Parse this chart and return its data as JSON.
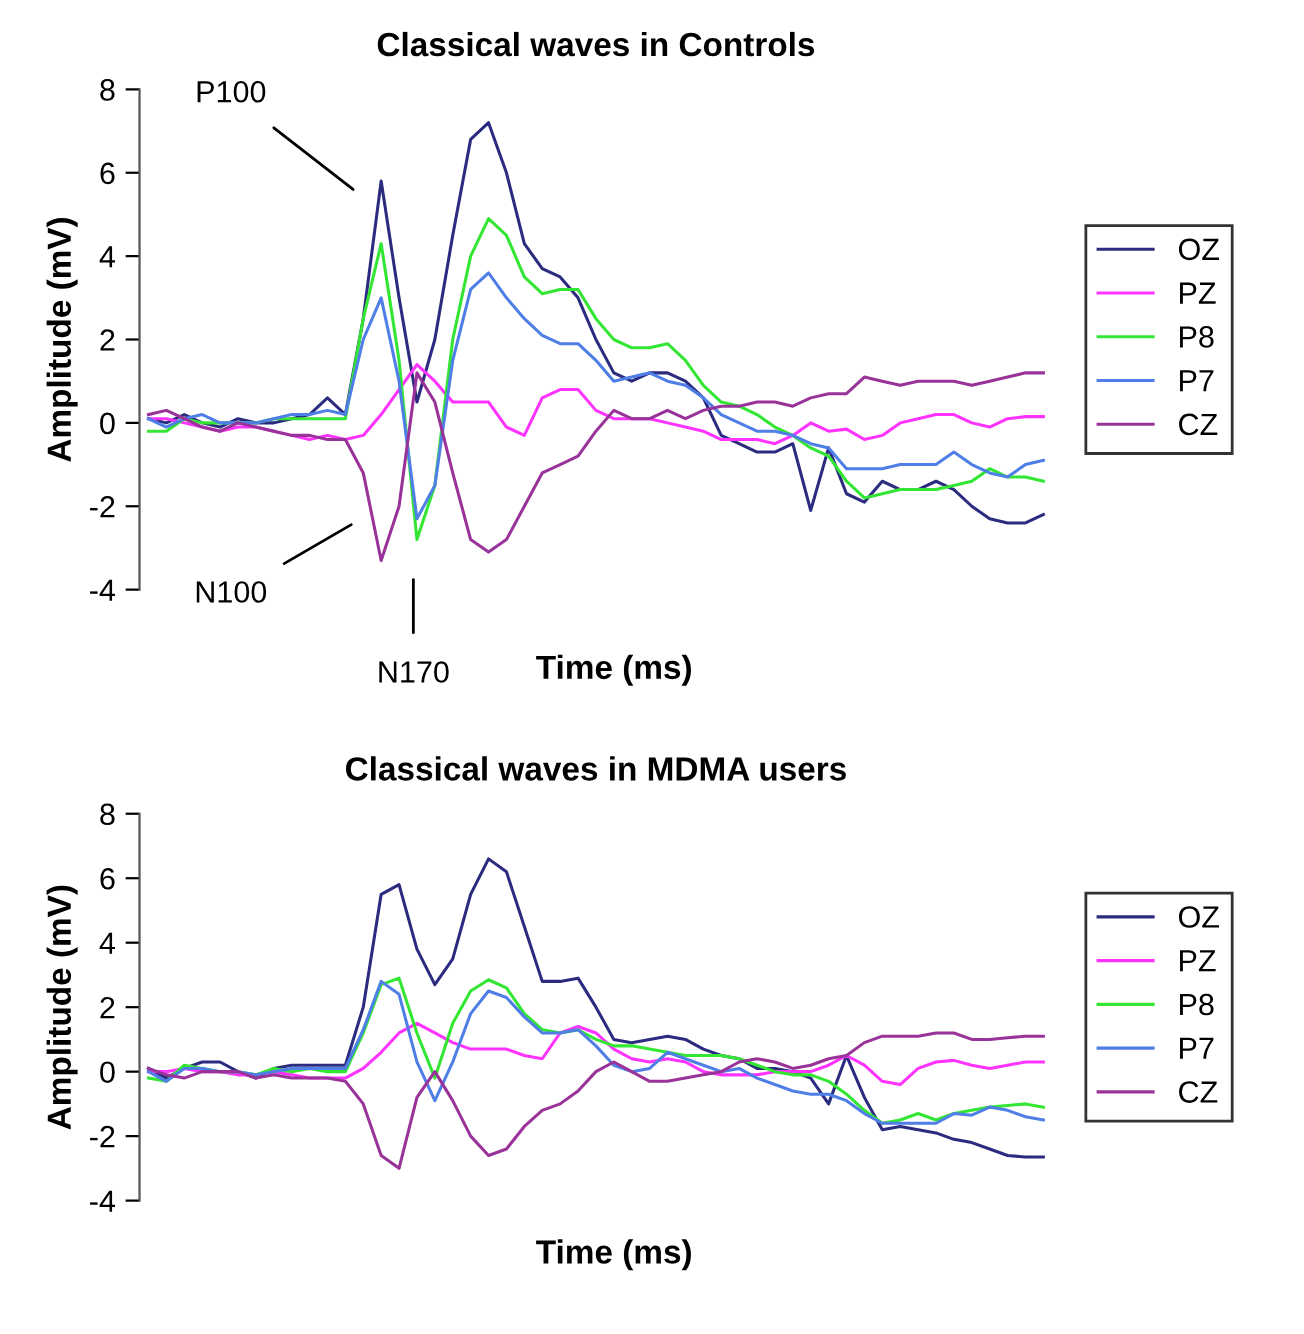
{
  "chart_data": [
    {
      "type": "line",
      "title": "Classical waves in Controls",
      "xlabel": "Time (ms)",
      "ylabel": "Amplitude (mV)",
      "categories": [
        null,
        null,
        null,
        null,
        null,
        null,
        null,
        null,
        null,
        null,
        null,
        null,
        null,
        null,
        null,
        null,
        null,
        null,
        null,
        null,
        null,
        null,
        null,
        null,
        null,
        null,
        null,
        null,
        null,
        null,
        null,
        null,
        null,
        null,
        null,
        null,
        null,
        null,
        null,
        null,
        null,
        null,
        null,
        null,
        null,
        null,
        null,
        null,
        null,
        null,
        null
      ],
      "series": [
        {
          "name": "OZ",
          "color": "#2b2b7f",
          "values": [
            0.1,
            0.0,
            0.2,
            0.0,
            -0.1,
            0.1,
            0.0,
            0.0,
            0.1,
            0.2,
            0.6,
            0.2,
            2.5,
            5.8,
            3.0,
            0.5,
            2.0,
            4.5,
            6.8,
            7.2,
            6.0,
            4.3,
            3.7,
            3.5,
            3.0,
            2.0,
            1.2,
            1.0,
            1.2,
            1.2,
            1.0,
            0.6,
            -0.3,
            -0.5,
            -0.7,
            -0.7,
            -0.5,
            -2.1,
            -0.6,
            -1.7,
            -1.9,
            -1.4,
            -1.6,
            -1.6,
            -1.4,
            -1.6,
            -2.0,
            -2.3,
            -2.4,
            -2.4,
            -2.2
          ]
        },
        {
          "name": "PZ",
          "color": "#ff33ff",
          "values": [
            0.1,
            0.1,
            0.0,
            -0.1,
            -0.2,
            -0.1,
            -0.1,
            -0.2,
            -0.3,
            -0.4,
            -0.3,
            -0.4,
            -0.3,
            0.2,
            0.8,
            1.4,
            1.0,
            0.5,
            0.5,
            0.5,
            -0.1,
            -0.3,
            0.6,
            0.8,
            0.8,
            0.3,
            0.1,
            0.1,
            0.1,
            0.0,
            -0.1,
            -0.2,
            -0.4,
            -0.4,
            -0.4,
            -0.5,
            -0.3,
            0.0,
            -0.2,
            -0.15,
            -0.4,
            -0.3,
            0.0,
            0.1,
            0.2,
            0.2,
            0.0,
            -0.1,
            0.1,
            0.15,
            0.15
          ]
        },
        {
          "name": "P8",
          "color": "#33e633",
          "values": [
            -0.2,
            -0.2,
            0.1,
            0.0,
            0.0,
            0.0,
            0.0,
            0.1,
            0.1,
            0.1,
            0.1,
            0.1,
            2.5,
            4.3,
            1.5,
            -2.8,
            -1.5,
            2.0,
            4.0,
            4.9,
            4.5,
            3.5,
            3.1,
            3.2,
            3.2,
            2.5,
            2.0,
            1.8,
            1.8,
            1.9,
            1.5,
            0.9,
            0.5,
            0.4,
            0.2,
            -0.1,
            -0.3,
            -0.6,
            -0.8,
            -1.4,
            -1.8,
            -1.7,
            -1.6,
            -1.6,
            -1.6,
            -1.5,
            -1.4,
            -1.1,
            -1.3,
            -1.3,
            -1.4
          ]
        },
        {
          "name": "P7",
          "color": "#4f7fe6",
          "values": [
            0.1,
            -0.1,
            0.1,
            0.2,
            0.0,
            0.0,
            0.0,
            0.1,
            0.2,
            0.2,
            0.3,
            0.2,
            2.0,
            3.0,
            1.0,
            -2.3,
            -1.5,
            1.5,
            3.2,
            3.6,
            3.0,
            2.5,
            2.1,
            1.9,
            1.9,
            1.5,
            1.0,
            1.1,
            1.2,
            1.0,
            0.9,
            0.6,
            0.2,
            0.0,
            -0.2,
            -0.2,
            -0.3,
            -0.5,
            -0.6,
            -1.1,
            -1.1,
            -1.1,
            -1.0,
            -1.0,
            -1.0,
            -0.7,
            -1.0,
            -1.2,
            -1.3,
            -1.0,
            -0.9
          ]
        },
        {
          "name": "CZ",
          "color": "#993399",
          "values": [
            0.2,
            0.3,
            0.1,
            -0.1,
            -0.2,
            0.0,
            -0.1,
            -0.2,
            -0.3,
            -0.3,
            -0.4,
            -0.4,
            -1.2,
            -3.3,
            -2.0,
            1.2,
            0.5,
            -1.2,
            -2.8,
            -3.1,
            -2.8,
            -2.0,
            -1.2,
            -1.0,
            -0.8,
            -0.2,
            0.3,
            0.1,
            0.1,
            0.3,
            0.1,
            0.3,
            0.4,
            0.4,
            0.5,
            0.5,
            0.4,
            0.6,
            0.7,
            0.7,
            1.1,
            1.0,
            0.9,
            1.0,
            1.0,
            1.0,
            0.9,
            1.0,
            1.1,
            1.2,
            1.2
          ]
        }
      ],
      "ylim": [
        -4,
        8
      ],
      "yticks": [
        -4,
        -2,
        0,
        2,
        4,
        6,
        8
      ],
      "legend": "right",
      "tick_labels": "y",
      "annotations": [
        "P100",
        "N100",
        "N170"
      ]
    },
    {
      "type": "line",
      "title": "Classical waves in MDMA users",
      "xlabel": "Time (ms)",
      "ylabel": "Amplitude (mV)",
      "categories": [
        null,
        null,
        null,
        null,
        null,
        null,
        null,
        null,
        null,
        null,
        null,
        null,
        null,
        null,
        null,
        null,
        null,
        null,
        null,
        null,
        null,
        null,
        null,
        null,
        null,
        null,
        null,
        null,
        null,
        null,
        null,
        null,
        null,
        null,
        null,
        null,
        null,
        null,
        null,
        null,
        null,
        null,
        null,
        null,
        null,
        null,
        null,
        null,
        null,
        null,
        null
      ],
      "series": [
        {
          "name": "OZ",
          "color": "#2b2b7f",
          "values": [
            0.1,
            -0.2,
            0.1,
            0.3,
            0.3,
            0.0,
            -0.2,
            0.1,
            0.2,
            0.2,
            0.2,
            0.2,
            2.0,
            5.5,
            5.8,
            3.8,
            2.7,
            3.5,
            5.5,
            6.6,
            6.2,
            4.5,
            2.8,
            2.8,
            2.9,
            2.0,
            1.0,
            0.9,
            1.0,
            1.1,
            1.0,
            0.7,
            0.5,
            0.4,
            0.1,
            0.1,
            0.0,
            -0.2,
            -1.0,
            0.5,
            -0.8,
            -1.8,
            -1.7,
            -1.8,
            -1.9,
            -2.1,
            -2.2,
            -2.4,
            -2.6,
            -2.65,
            -2.65
          ]
        },
        {
          "name": "PZ",
          "color": "#ff33ff",
          "values": [
            0.0,
            0.0,
            0.1,
            0.0,
            0.0,
            -0.1,
            -0.1,
            0.0,
            -0.1,
            -0.2,
            -0.2,
            -0.2,
            0.1,
            0.6,
            1.2,
            1.5,
            1.2,
            0.9,
            0.7,
            0.7,
            0.7,
            0.5,
            0.4,
            1.2,
            1.4,
            1.2,
            0.7,
            0.4,
            0.3,
            0.4,
            0.3,
            0.0,
            -0.1,
            -0.1,
            -0.1,
            0.0,
            0.0,
            0.0,
            0.2,
            0.5,
            0.2,
            -0.3,
            -0.4,
            0.1,
            0.3,
            0.35,
            0.2,
            0.1,
            0.2,
            0.3,
            0.3
          ]
        },
        {
          "name": "P8",
          "color": "#33e633",
          "values": [
            -0.2,
            -0.3,
            0.2,
            0.1,
            0.0,
            0.0,
            -0.1,
            0.1,
            0.0,
            0.1,
            0.0,
            0.0,
            1.2,
            2.7,
            2.9,
            1.2,
            -0.2,
            1.5,
            2.5,
            2.85,
            2.6,
            1.8,
            1.3,
            1.2,
            1.3,
            1.0,
            0.8,
            0.8,
            0.7,
            0.6,
            0.5,
            0.5,
            0.5,
            0.4,
            0.2,
            0.0,
            -0.1,
            -0.1,
            -0.3,
            -0.7,
            -1.2,
            -1.6,
            -1.5,
            -1.3,
            -1.5,
            -1.3,
            -1.2,
            -1.1,
            -1.05,
            -1.0,
            -1.1
          ]
        },
        {
          "name": "P7",
          "color": "#4f7fe6",
          "values": [
            0.0,
            -0.3,
            0.1,
            0.1,
            0.0,
            0.0,
            -0.1,
            0.0,
            0.1,
            0.1,
            0.1,
            0.1,
            1.3,
            2.8,
            2.4,
            0.3,
            -0.9,
            0.3,
            1.8,
            2.5,
            2.3,
            1.7,
            1.2,
            1.2,
            1.3,
            0.8,
            0.2,
            0.0,
            0.1,
            0.6,
            0.4,
            0.2,
            0.0,
            0.1,
            -0.2,
            -0.4,
            -0.6,
            -0.7,
            -0.7,
            -0.9,
            -1.3,
            -1.6,
            -1.6,
            -1.6,
            -1.6,
            -1.3,
            -1.35,
            -1.1,
            -1.2,
            -1.4,
            -1.5
          ]
        },
        {
          "name": "CZ",
          "color": "#993399",
          "values": [
            0.1,
            -0.1,
            -0.2,
            0.0,
            0.0,
            0.0,
            -0.2,
            -0.1,
            -0.2,
            -0.2,
            -0.2,
            -0.3,
            -1.0,
            -2.6,
            -3.0,
            -0.8,
            0.0,
            -0.9,
            -2.0,
            -2.6,
            -2.4,
            -1.7,
            -1.2,
            -1.0,
            -0.6,
            0.0,
            0.3,
            0.0,
            -0.3,
            -0.3,
            -0.2,
            -0.1,
            0.0,
            0.3,
            0.4,
            0.3,
            0.1,
            0.2,
            0.4,
            0.5,
            0.9,
            1.1,
            1.1,
            1.1,
            1.2,
            1.2,
            1.0,
            1.0,
            1.05,
            1.1,
            1.1
          ]
        }
      ],
      "ylim": [
        -4,
        8
      ],
      "yticks": [
        -4,
        -2,
        0,
        2,
        4,
        6,
        8
      ],
      "legend": "right",
      "tick_labels": "y"
    }
  ]
}
